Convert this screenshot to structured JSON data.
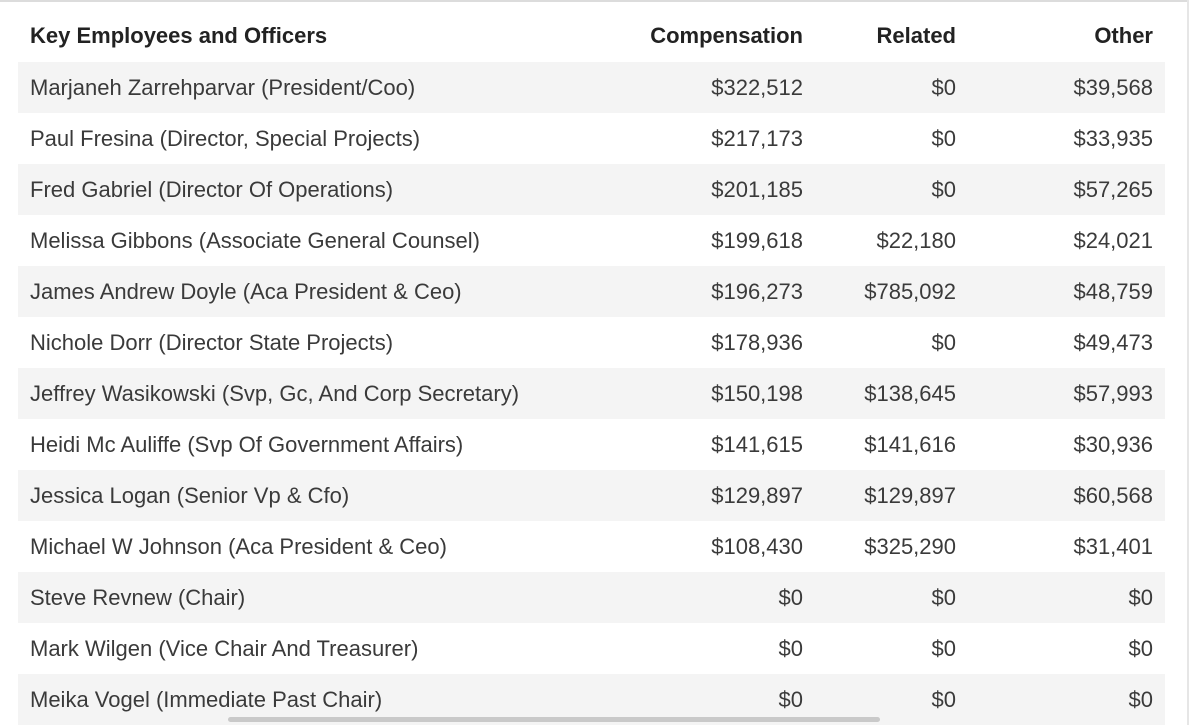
{
  "table": {
    "headers": {
      "name": "Key Employees and Officers",
      "compensation": "Compensation",
      "related": "Related",
      "other": "Other"
    },
    "rows": [
      {
        "name": "Marjaneh Zarrehparvar (President/Coo)",
        "compensation": "$322,512",
        "related": "$0",
        "other": "$39,568"
      },
      {
        "name": "Paul Fresina (Director, Special Projects)",
        "compensation": "$217,173",
        "related": "$0",
        "other": "$33,935"
      },
      {
        "name": "Fred Gabriel (Director Of Operations)",
        "compensation": "$201,185",
        "related": "$0",
        "other": "$57,265"
      },
      {
        "name": "Melissa Gibbons (Associate General Counsel)",
        "compensation": "$199,618",
        "related": "$22,180",
        "other": "$24,021"
      },
      {
        "name": "James Andrew Doyle (Aca President & Ceo)",
        "compensation": "$196,273",
        "related": "$785,092",
        "other": "$48,759"
      },
      {
        "name": "Nichole Dorr (Director State Projects)",
        "compensation": "$178,936",
        "related": "$0",
        "other": "$49,473"
      },
      {
        "name": "Jeffrey Wasikowski (Svp, Gc, And Corp Secretary)",
        "compensation": "$150,198",
        "related": "$138,645",
        "other": "$57,993"
      },
      {
        "name": "Heidi Mc Auliffe (Svp Of Government Affairs)",
        "compensation": "$141,615",
        "related": "$141,616",
        "other": "$30,936"
      },
      {
        "name": "Jessica Logan (Senior Vp & Cfo)",
        "compensation": "$129,897",
        "related": "$129,897",
        "other": "$60,568"
      },
      {
        "name": "Michael W Johnson (Aca President & Ceo)",
        "compensation": "$108,430",
        "related": "$325,290",
        "other": "$31,401"
      },
      {
        "name": "Steve Revnew (Chair)",
        "compensation": "$0",
        "related": "$0",
        "other": "$0"
      },
      {
        "name": "Mark Wilgen (Vice Chair And Treasurer)",
        "compensation": "$0",
        "related": "$0",
        "other": "$0"
      },
      {
        "name": "Meika Vogel (Immediate Past Chair)",
        "compensation": "$0",
        "related": "$0",
        "other": "$0"
      }
    ]
  }
}
